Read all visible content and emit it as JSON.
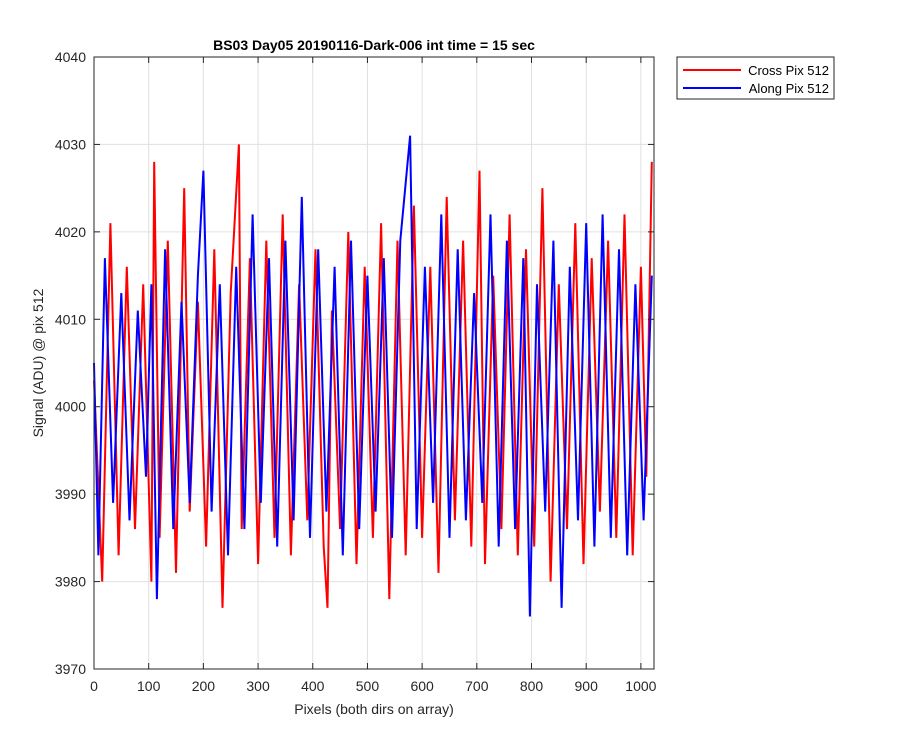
{
  "chart_data": {
    "type": "line",
    "title": "BS03 Day05 20190116-Dark-006 int time = 15 sec",
    "xlabel": "Pixels (both dirs on array)",
    "ylabel": "Signal (ADU) @ pix 512",
    "xlim": [
      0,
      1024
    ],
    "ylim": [
      3970,
      4040
    ],
    "xticks": [
      0,
      100,
      200,
      300,
      400,
      500,
      600,
      700,
      800,
      900,
      1000
    ],
    "yticks": [
      3970,
      3980,
      3990,
      4000,
      4010,
      4020,
      4030,
      4040
    ],
    "grid": true,
    "legend_location": "outside-top-right",
    "series": [
      {
        "name": "Cross Pix 512",
        "color": "#ff0000",
        "x": [
          0,
          15,
          30,
          45,
          60,
          75,
          90,
          105,
          110,
          120,
          135,
          150,
          165,
          175,
          190,
          205,
          220,
          235,
          250,
          265,
          270,
          285,
          300,
          315,
          330,
          345,
          360,
          375,
          390,
          405,
          420,
          427,
          435,
          450,
          465,
          480,
          495,
          510,
          525,
          540,
          555,
          570,
          585,
          600,
          615,
          630,
          645,
          660,
          675,
          690,
          705,
          715,
          730,
          745,
          760,
          775,
          790,
          805,
          820,
          835,
          850,
          865,
          880,
          895,
          910,
          925,
          940,
          955,
          970,
          985,
          1000,
          1010,
          1020
        ],
        "y": [
          4003,
          3980,
          4021,
          3983,
          4016,
          3986,
          4014,
          3980,
          4028,
          3985,
          4019,
          3981,
          4025,
          3988,
          4012,
          3984,
          4018,
          3977,
          4013,
          4030,
          3986,
          4017,
          3982,
          4019,
          3985,
          4022,
          3983,
          4014,
          3987,
          4018,
          3984,
          3977,
          4011,
          3986,
          4020,
          3982,
          4016,
          3985,
          4021,
          3978,
          4019,
          3983,
          4023,
          3985,
          4016,
          3981,
          4024,
          3987,
          4019,
          3984,
          4027,
          3982,
          4015,
          3986,
          4022,
          3983,
          4018,
          3984,
          4025,
          3980,
          4014,
          3986,
          4021,
          3982,
          4017,
          3988,
          4019,
          3985,
          4022,
          3983,
          4016,
          3992,
          4028
        ]
      },
      {
        "name": "Along Pix 512",
        "color": "#0000ff",
        "x": [
          0,
          8,
          20,
          35,
          50,
          65,
          80,
          95,
          105,
          115,
          130,
          145,
          160,
          175,
          190,
          200,
          215,
          230,
          245,
          260,
          275,
          290,
          305,
          320,
          335,
          350,
          365,
          380,
          395,
          410,
          425,
          440,
          455,
          470,
          485,
          500,
          515,
          530,
          545,
          560,
          578,
          590,
          605,
          620,
          635,
          650,
          665,
          680,
          695,
          710,
          725,
          740,
          755,
          770,
          785,
          797,
          810,
          825,
          840,
          855,
          870,
          885,
          900,
          915,
          930,
          945,
          960,
          975,
          990,
          1005,
          1020
        ],
        "y": [
          4005,
          3983,
          4017,
          3989,
          4013,
          3987,
          4011,
          3992,
          4014,
          3978,
          4018,
          3986,
          4012,
          3989,
          4015,
          4027,
          3988,
          4014,
          3983,
          4016,
          3986,
          4022,
          3989,
          4017,
          3984,
          4019,
          3987,
          4024,
          3985,
          4018,
          3988,
          4016,
          3983,
          4019,
          3986,
          4015,
          3988,
          4017,
          3985,
          4019,
          4031,
          3986,
          4016,
          3989,
          4022,
          3985,
          4018,
          3987,
          4013,
          3989,
          4022,
          3984,
          4019,
          3986,
          4017,
          3976,
          4014,
          3988,
          4019,
          3977,
          4016,
          3987,
          4021,
          3984,
          4022,
          3985,
          4018,
          3983,
          4014,
          3987,
          4015
        ]
      }
    ]
  }
}
